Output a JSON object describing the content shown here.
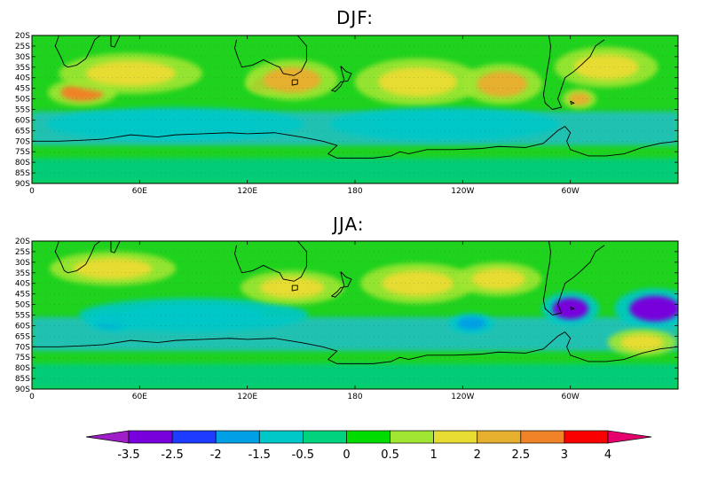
{
  "panels": [
    {
      "id": "djf",
      "title": "DJF:",
      "lat_ticks": [
        "20S",
        "25S",
        "30S",
        "35S",
        "40S",
        "45S",
        "50S",
        "55S",
        "60S",
        "65S",
        "70S",
        "75S",
        "80S",
        "85S",
        "90S"
      ],
      "lon_ticks": [
        "0",
        "60E",
        "120E",
        "180",
        "120W",
        "60W"
      ],
      "features": [
        {
          "type": "warm",
          "lon": 28,
          "lat": -47,
          "rx": 12,
          "ry": 4,
          "level": 2.5
        },
        {
          "type": "warm",
          "lon": 130,
          "lat": -43,
          "rx": 7,
          "ry": 3,
          "level": 3
        },
        {
          "type": "warm",
          "lon": 145,
          "lat": -41,
          "rx": 16,
          "ry": 6,
          "level": 2
        },
        {
          "type": "warm",
          "lon": 55,
          "lat": -38,
          "rx": 25,
          "ry": 6,
          "level": 1
        },
        {
          "type": "warm",
          "lon": 215,
          "lat": -42,
          "rx": 22,
          "ry": 7,
          "level": 1
        },
        {
          "type": "warm",
          "lon": 262,
          "lat": -43,
          "rx": 14,
          "ry": 6,
          "level": 2
        },
        {
          "type": "warm",
          "lon": 305,
          "lat": -50,
          "rx": 6,
          "ry": 3,
          "level": 2
        },
        {
          "type": "warm",
          "lon": 320,
          "lat": -35,
          "rx": 18,
          "ry": 6,
          "level": 1
        },
        {
          "type": "cool",
          "lon": 80,
          "lat": -62,
          "rx": 45,
          "ry": 5,
          "level": -0.5
        },
        {
          "type": "cool",
          "lon": 230,
          "lat": -62,
          "rx": 40,
          "ry": 5,
          "level": -0.5
        }
      ]
    },
    {
      "id": "jja",
      "title": "JJA:",
      "lat_ticks": [
        "20S",
        "25S",
        "30S",
        "35S",
        "40S",
        "45S",
        "50S",
        "55S",
        "60S",
        "65S",
        "70S",
        "75S",
        "80S",
        "85S",
        "90S"
      ],
      "lon_ticks": [
        "0",
        "60E",
        "120E",
        "180",
        "120W",
        "60W"
      ],
      "features": [
        {
          "type": "cool",
          "lon": 300,
          "lat": -52,
          "rx": 10,
          "ry": 5,
          "level": -2.5
        },
        {
          "type": "cool",
          "lon": 347,
          "lat": -52,
          "rx": 14,
          "ry": 6,
          "level": -2.5
        },
        {
          "type": "cool",
          "lon": 45,
          "lat": -58,
          "rx": 9,
          "ry": 3,
          "level": -1.5
        },
        {
          "type": "cool",
          "lon": 245,
          "lat": -59,
          "rx": 8,
          "ry": 3,
          "level": -1.5
        },
        {
          "type": "cool",
          "lon": 90,
          "lat": -55,
          "rx": 40,
          "ry": 5,
          "level": -0.5
        },
        {
          "type": "warm",
          "lon": 45,
          "lat": -33,
          "rx": 22,
          "ry": 5,
          "level": 1
        },
        {
          "type": "warm",
          "lon": 145,
          "lat": -42,
          "rx": 18,
          "ry": 5,
          "level": 1
        },
        {
          "type": "warm",
          "lon": 215,
          "lat": -40,
          "rx": 20,
          "ry": 6,
          "level": 1
        },
        {
          "type": "warm",
          "lon": 340,
          "lat": -68,
          "rx": 12,
          "ry": 4,
          "level": 1
        },
        {
          "type": "warm",
          "lon": 260,
          "lat": -38,
          "rx": 15,
          "ry": 5,
          "level": 1
        }
      ]
    }
  ],
  "colorbar": {
    "labels": [
      "-3.5",
      "-2.5",
      "-2",
      "-1.5",
      "-0.5",
      "0",
      "0.5",
      "1",
      "2",
      "2.5",
      "3",
      "4"
    ],
    "colors": [
      "#a01ec8",
      "#7800dc",
      "#1e3cff",
      "#00a0e6",
      "#00c8c8",
      "#00d27d",
      "#00dc00",
      "#a0e632",
      "#e6dc32",
      "#e6af2d",
      "#f08228",
      "#fa0000",
      "#e6006e"
    ]
  },
  "colors": {
    "base": "#1ed21e",
    "antarctic_band": "#00cc82",
    "ocean_band": "#22bfcc"
  }
}
